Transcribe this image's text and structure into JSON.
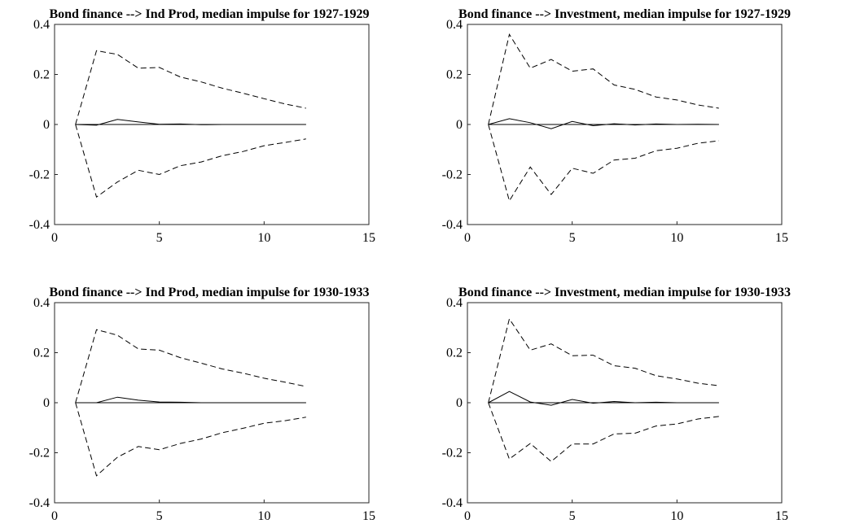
{
  "chart_data": [
    {
      "type": "line",
      "title": "Bond finance --> Ind Prod, median impulse for 1927-1929",
      "xlim": [
        0,
        15
      ],
      "ylim": [
        -0.4,
        0.4
      ],
      "x_ticks": [
        "0",
        "5",
        "10",
        "15"
      ],
      "y_ticks": [
        "0.4",
        "0.2",
        "0",
        "-0.2",
        "-0.4"
      ],
      "x": [
        1,
        2,
        3,
        4,
        5,
        6,
        7,
        8,
        9,
        10,
        11,
        12
      ],
      "series": [
        {
          "values": [
            0,
            -0.003,
            0.02,
            0.01,
            0.001,
            0.002,
            -0.001,
            0.0,
            0.0,
            0.0,
            0.0,
            0.0
          ]
        },
        {
          "values": [
            0,
            0.295,
            0.28,
            0.225,
            0.228,
            0.19,
            0.17,
            0.145,
            0.125,
            0.103,
            0.082,
            0.065
          ]
        },
        {
          "values": [
            0,
            -0.29,
            -0.23,
            -0.183,
            -0.2,
            -0.165,
            -0.15,
            -0.125,
            -0.108,
            -0.085,
            -0.072,
            -0.058
          ]
        }
      ]
    },
    {
      "type": "line",
      "title": "Bond finance --> Investment, median impulse for 1927-1929",
      "xlim": [
        0,
        15
      ],
      "ylim": [
        -0.4,
        0.4
      ],
      "x_ticks": [
        "0",
        "5",
        "10",
        "15"
      ],
      "y_ticks": [
        "0.4",
        "0.2",
        "0",
        "-0.2",
        "-0.4"
      ],
      "x": [
        1,
        2,
        3,
        4,
        5,
        6,
        7,
        8,
        9,
        10,
        11,
        12
      ],
      "series": [
        {
          "values": [
            0,
            0.023,
            0.007,
            -0.017,
            0.012,
            -0.005,
            0.003,
            -0.002,
            0.002,
            0.0,
            0.001,
            0.0
          ]
        },
        {
          "values": [
            0,
            0.36,
            0.225,
            0.26,
            0.213,
            0.222,
            0.158,
            0.14,
            0.11,
            0.098,
            0.078,
            0.065
          ]
        },
        {
          "values": [
            0,
            -0.305,
            -0.17,
            -0.28,
            -0.175,
            -0.195,
            -0.142,
            -0.135,
            -0.105,
            -0.095,
            -0.075,
            -0.065
          ]
        }
      ]
    },
    {
      "type": "line",
      "title": "Bond finance --> Ind Prod, median impulse for 1930-1933",
      "xlim": [
        0,
        15
      ],
      "ylim": [
        -0.4,
        0.4
      ],
      "x_ticks": [
        "0",
        "5",
        "10",
        "15"
      ],
      "y_ticks": [
        "0.4",
        "0.2",
        "0",
        "-0.2",
        "-0.4"
      ],
      "x": [
        1,
        2,
        3,
        4,
        5,
        6,
        7,
        8,
        9,
        10,
        11,
        12
      ],
      "series": [
        {
          "values": [
            0,
            0.0,
            0.022,
            0.01,
            0.003,
            0.002,
            0.0,
            0.0,
            0.0,
            0.0,
            0.0,
            0.0
          ]
        },
        {
          "values": [
            0,
            0.292,
            0.27,
            0.215,
            0.21,
            0.18,
            0.158,
            0.135,
            0.118,
            0.098,
            0.082,
            0.065
          ]
        },
        {
          "values": [
            0,
            -0.292,
            -0.218,
            -0.175,
            -0.188,
            -0.163,
            -0.145,
            -0.12,
            -0.102,
            -0.082,
            -0.072,
            -0.058
          ]
        }
      ]
    },
    {
      "type": "line",
      "title": "Bond finance --> Investment, median impulse for 1930-1933",
      "xlim": [
        0,
        15
      ],
      "ylim": [
        -0.4,
        0.4
      ],
      "x_ticks": [
        "0",
        "5",
        "10",
        "15"
      ],
      "y_ticks": [
        "0.4",
        "0.2",
        "0",
        "-0.2",
        "-0.4"
      ],
      "x": [
        1,
        2,
        3,
        4,
        5,
        6,
        7,
        8,
        9,
        10,
        11,
        12
      ],
      "series": [
        {
          "values": [
            0,
            0.045,
            0.003,
            -0.01,
            0.013,
            -0.002,
            0.005,
            0.0,
            0.002,
            0.0,
            0.0,
            0.0
          ]
        },
        {
          "values": [
            0,
            0.335,
            0.21,
            0.235,
            0.188,
            0.19,
            0.148,
            0.138,
            0.108,
            0.095,
            0.078,
            0.068
          ]
        },
        {
          "values": [
            0,
            -0.225,
            -0.163,
            -0.235,
            -0.165,
            -0.165,
            -0.125,
            -0.122,
            -0.093,
            -0.085,
            -0.065,
            -0.055
          ]
        }
      ]
    }
  ]
}
